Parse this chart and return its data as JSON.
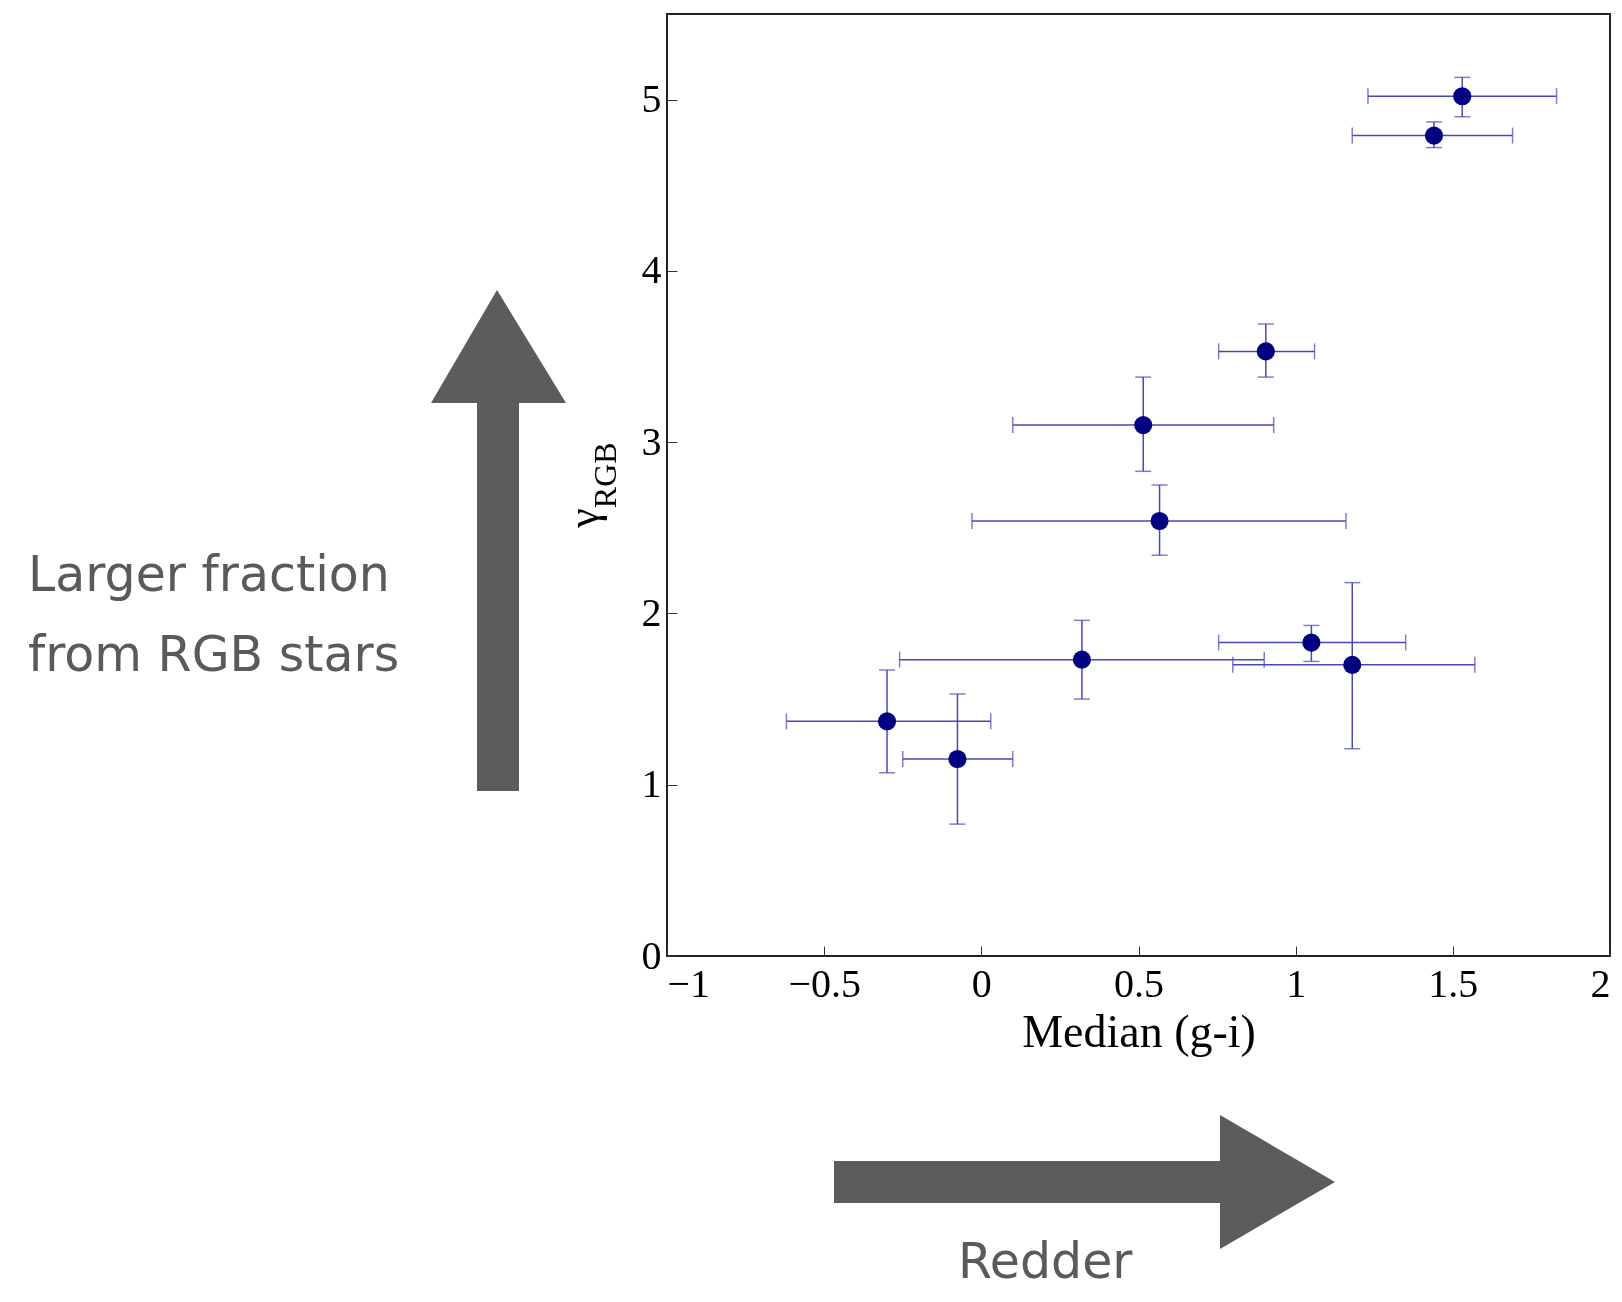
{
  "chart_data": {
    "type": "scatter",
    "xlabel": "Median (g-i)",
    "ylabel": "γ$_{RGB}$",
    "x": [
      1.53,
      1.44,
      0.905,
      0.515,
      0.567,
      0.32,
      1.05,
      1.18,
      -0.3,
      -0.076
    ],
    "series": [
      {
        "color": "#000080",
        "values": [
          5.02,
          4.79,
          3.53,
          3.1,
          2.54,
          1.73,
          1.83,
          1.7,
          1.37,
          1.15
        ],
        "errors": [
          [
            4.9,
            5.13
          ],
          [
            4.72,
            4.87
          ],
          [
            3.38,
            3.69
          ],
          [
            2.83,
            3.38
          ],
          [
            2.34,
            2.75
          ],
          [
            1.5,
            1.96
          ],
          [
            1.72,
            1.93
          ],
          [
            1.21,
            2.18
          ],
          [
            1.07,
            1.67
          ],
          [
            0.77,
            1.53
          ]
        ],
        "xerrors": [
          [
            1.23,
            1.83
          ],
          [
            1.18,
            1.69
          ],
          [
            0.755,
            1.06
          ],
          [
            0.1,
            0.93
          ],
          [
            -0.03,
            1.16
          ],
          [
            -0.26,
            0.9
          ],
          [
            0.755,
            1.35
          ],
          [
            0.8,
            1.57
          ],
          [
            -0.62,
            0.03
          ],
          [
            -0.25,
            0.1
          ]
        ]
      }
    ],
    "marker": "circle",
    "grid": false,
    "xlim": [
      -1,
      2
    ],
    "xticks": [
      {
        "value": -1,
        "label": "−1"
      },
      {
        "value": -0.5,
        "label": "−0.5"
      },
      0,
      0.5,
      1,
      1.5,
      2
    ],
    "ylim": [
      0,
      5.5
    ],
    "yticks": [
      0,
      1,
      2,
      3,
      4,
      5
    ],
    "annotations": [
      "Larger fraction from RGB stars",
      "Redder"
    ]
  }
}
